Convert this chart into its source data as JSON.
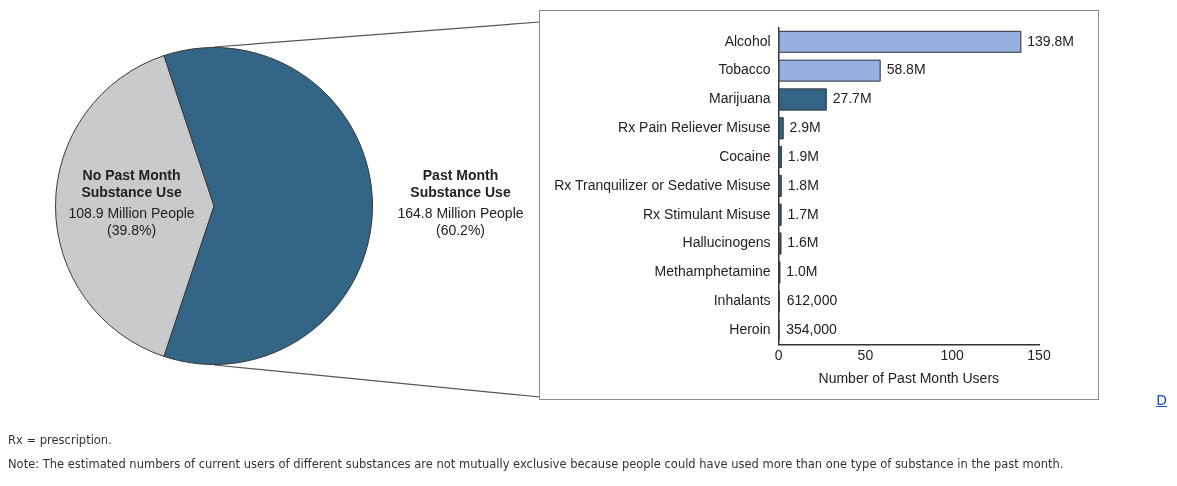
{
  "chart_data": [
    {
      "type": "pie",
      "categories": [
        "No Past Month Substance Use",
        "Past Month Substance Use"
      ],
      "values": [
        108.9,
        164.8
      ],
      "colors": [
        "#c9cacc",
        "#336686"
      ],
      "value_labels": [
        "108.9 Million People (39.8%)",
        "164.8 Million People (60.2%)"
      ],
      "legend": false
    },
    {
      "type": "bar",
      "orientation": "horizontal",
      "categories": [
        "Alcohol",
        "Tobacco",
        "Marijuana",
        "Rx Pain Reliever Misuse",
        "Cocaine",
        "Rx Tranquilizer or Sedative Misuse",
        "Rx Stimulant Misuse",
        "Hallucinogens",
        "Methamphetamine",
        "Inhalants",
        "Heroin"
      ],
      "values": [
        139.8,
        58.8,
        27.7,
        2.9,
        1.9,
        1.8,
        1.7,
        1.6,
        1.0,
        0.612,
        0.354
      ],
      "colors": [
        "#95afe1",
        "#95afe1",
        "#336686",
        "#336686",
        "#336686",
        "#336686",
        "#336686",
        "#336686",
        "#336686",
        "#336686",
        "#336686"
      ],
      "value_labels": [
        "139.8M",
        "58.8M",
        "27.7M",
        "2.9M",
        "1.9M",
        "1.8M",
        "1.7M",
        "1.6M",
        "1.0M",
        null,
        null
      ],
      "xlim": [
        0,
        150
      ],
      "xticks": [
        0,
        50,
        100,
        150
      ],
      "xlabel": "Number of Past Month Users",
      "grid": false,
      "legend": false,
      "annotations": [
        "D",
        "Rx = prescription.",
        "Note: The estimated numbers of current users of different substances are not mutually exclusive because people could have used more than one type of substance in the past month.",
        {
          "text": "612,000",
          "x": 0.612,
          "y": "Inhalants"
        },
        {
          "text": "354,000",
          "x": 0.354,
          "y": "Heroin"
        }
      ]
    }
  ]
}
